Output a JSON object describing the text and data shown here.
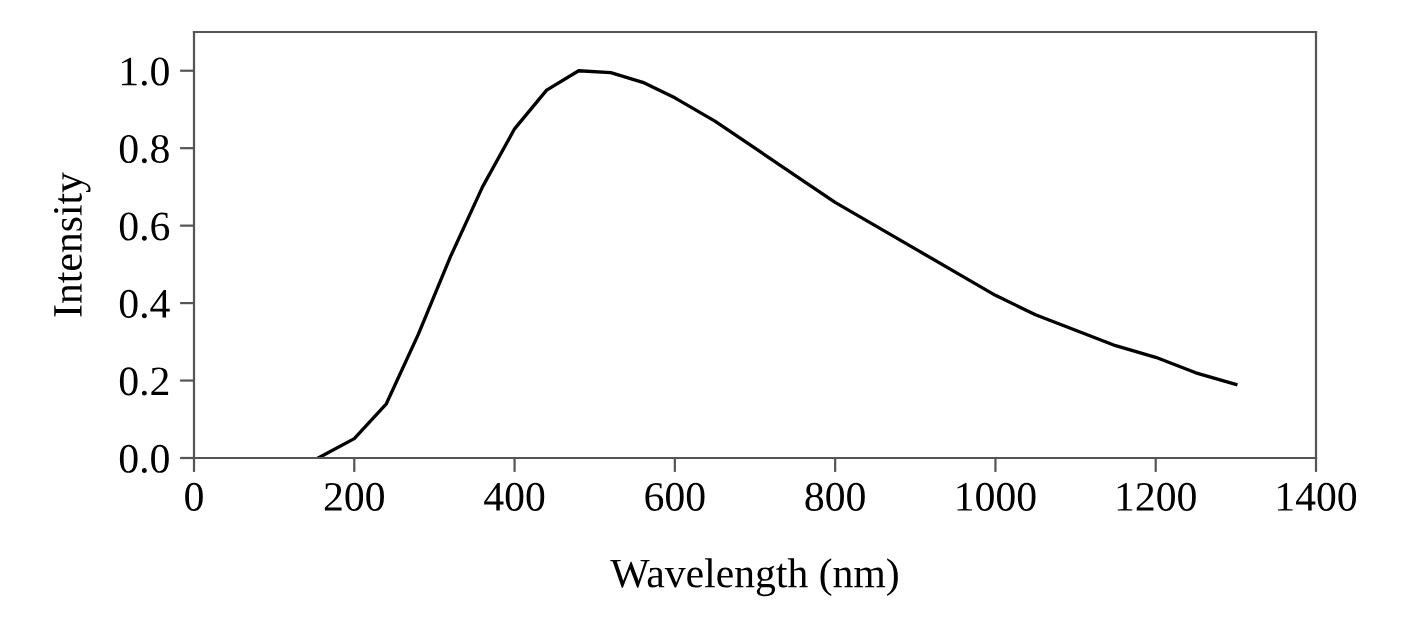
{
  "chart_data": {
    "type": "line",
    "xlabel": "Wavelength (nm)",
    "ylabel": "Intensity",
    "xlim": [
      0,
      1400
    ],
    "xticks": [
      0,
      200,
      400,
      600,
      800,
      1000,
      1200,
      1400
    ],
    "ylim": [
      0,
      1.1
    ],
    "yticks": [
      {
        "value": 0,
        "label": "0.0"
      },
      {
        "value": 0.2,
        "label": "0.2"
      },
      {
        "value": 0.4,
        "label": "0.4"
      },
      {
        "value": 0.6,
        "label": "0.6"
      },
      {
        "value": 0.8,
        "label": "0.8"
      },
      {
        "value": 1.0,
        "label": "1.0"
      }
    ],
    "grid": false,
    "marker": "none",
    "line_style": "solid",
    "series": [
      {
        "color": "#000000",
        "x": [
          155,
          200,
          240,
          280,
          320,
          360,
          400,
          440,
          480,
          520,
          560,
          600,
          650,
          700,
          750,
          800,
          850,
          900,
          950,
          1000,
          1050,
          1100,
          1150,
          1200,
          1250,
          1300
        ],
        "values": [
          0,
          0.05,
          0.14,
          0.32,
          0.52,
          0.7,
          0.85,
          0.95,
          1.0,
          0.995,
          0.97,
          0.93,
          0.87,
          0.8,
          0.73,
          0.66,
          0.6,
          0.54,
          0.48,
          0.42,
          0.37,
          0.33,
          0.29,
          0.26,
          0.22,
          0.19
        ]
      }
    ]
  }
}
